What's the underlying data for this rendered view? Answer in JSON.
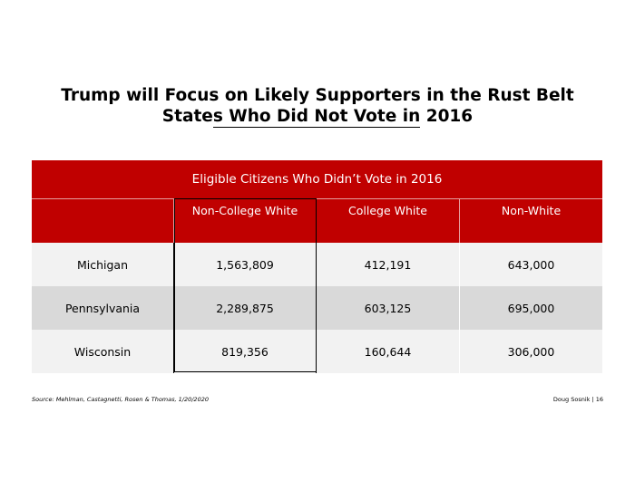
{
  "title": {
    "line1": "Trump will Focus on Likely Supporters in the Rust Belt",
    "line2_prefix": "State",
    "line2_underlined": "s Who Did Not Vote in",
    "line2_suffix": " 2016"
  },
  "table": {
    "banner": "Eligible Citizens Who Didn’t Vote in 2016",
    "headers": [
      "",
      "Non-College White",
      "College White",
      "Non-White"
    ],
    "rows": [
      {
        "state": "Michigan",
        "non_college_white": "1,563,809",
        "college_white": "412,191",
        "non_white": "643,000"
      },
      {
        "state": "Pennsylvania",
        "non_college_white": "2,289,875",
        "college_white": "603,125",
        "non_white": "695,000"
      },
      {
        "state": "Wisconsin",
        "non_college_white": "819,356",
        "college_white": "160,644",
        "non_white": "306,000"
      }
    ]
  },
  "footer": {
    "source": "Source: Mehlman, Castagnetti, Rosen & Thomas, 1/20/2020",
    "page": "Doug Sosnik | 16"
  },
  "colors": {
    "header_red": "#c00000",
    "row_light": "#f2f2f2",
    "row_dark": "#d9d9d9"
  }
}
